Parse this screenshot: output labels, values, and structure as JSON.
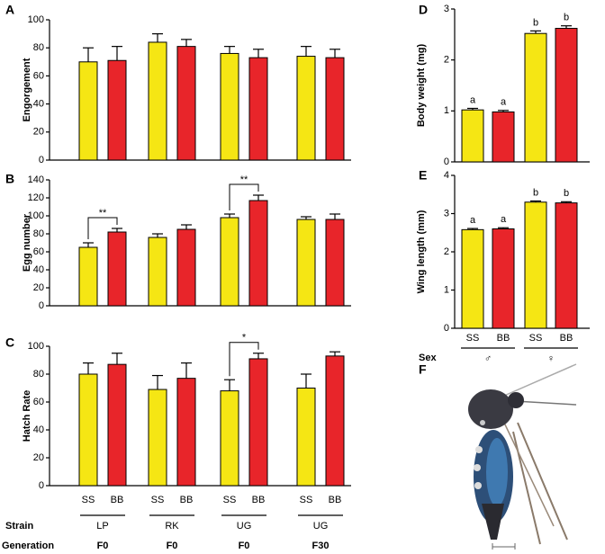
{
  "chart_data": [
    {
      "type": "bar",
      "panel": "A",
      "ylabel": "Engorgement",
      "ylim": [
        0,
        100
      ],
      "yticks": [
        0,
        20,
        40,
        60,
        80,
        100
      ],
      "categories": [
        "LP",
        "RK",
        "UG",
        "UG"
      ],
      "series": [
        {
          "name": "SS",
          "color": "#f5e614",
          "values": [
            70,
            84,
            76,
            74
          ],
          "errors": [
            10,
            6,
            5,
            7
          ]
        },
        {
          "name": "BB",
          "color": "#e8252a",
          "values": [
            71,
            81,
            73,
            73
          ],
          "errors": [
            10,
            5,
            6,
            6
          ]
        }
      ]
    },
    {
      "type": "bar",
      "panel": "B",
      "ylabel": "Egg number",
      "ylim": [
        0,
        140
      ],
      "yticks": [
        0,
        20,
        40,
        60,
        80,
        100,
        120,
        140
      ],
      "categories": [
        "LP",
        "RK",
        "UG",
        "UG"
      ],
      "significance": [
        "**",
        null,
        "**",
        null
      ],
      "series": [
        {
          "name": "SS",
          "color": "#f5e614",
          "values": [
            65,
            76,
            98,
            96
          ],
          "errors": [
            5,
            4,
            4,
            3
          ]
        },
        {
          "name": "BB",
          "color": "#e8252a",
          "values": [
            82,
            85,
            117,
            96
          ],
          "errors": [
            4,
            5,
            6,
            6
          ]
        }
      ]
    },
    {
      "type": "bar",
      "panel": "C",
      "ylabel": "Hatch Rate",
      "ylim": [
        0,
        100
      ],
      "yticks": [
        0,
        20,
        40,
        60,
        80,
        100
      ],
      "xlabel": "Strain",
      "x2label": "Generation",
      "categories": [
        "LP",
        "RK",
        "UG",
        "UG"
      ],
      "categories2": [
        "F0",
        "F0",
        "F0",
        "F30"
      ],
      "significance": [
        null,
        null,
        "*",
        null
      ],
      "series": [
        {
          "name": "SS",
          "color": "#f5e614",
          "values": [
            80,
            69,
            68,
            70
          ],
          "errors": [
            8,
            10,
            8,
            10
          ]
        },
        {
          "name": "BB",
          "color": "#e8252a",
          "values": [
            87,
            77,
            91,
            93
          ],
          "errors": [
            8,
            11,
            4,
            3
          ]
        }
      ]
    },
    {
      "type": "bar",
      "panel": "D",
      "ylabel": "Body weight (mg)",
      "ylim": [
        0,
        3
      ],
      "yticks": [
        0,
        1,
        2,
        3
      ],
      "categories": [
        "♂",
        "♀"
      ],
      "series": [
        {
          "name": "SS",
          "color": "#f5e614",
          "values": [
            1.02,
            2.52
          ],
          "errors": [
            0.03,
            0.05
          ],
          "letters": [
            "a",
            "b"
          ]
        },
        {
          "name": "BB",
          "color": "#e8252a",
          "values": [
            0.98,
            2.62
          ],
          "errors": [
            0.03,
            0.05
          ],
          "letters": [
            "a",
            "b"
          ]
        }
      ]
    },
    {
      "type": "bar",
      "panel": "E",
      "ylabel": "Wing length (mm)",
      "ylim": [
        0,
        4
      ],
      "yticks": [
        0,
        1,
        2,
        3,
        4
      ],
      "xlabel": "Sex",
      "categories": [
        "♂",
        "♀"
      ],
      "series": [
        {
          "name": "SS",
          "color": "#f5e614",
          "values": [
            2.58,
            3.3
          ],
          "errors": [
            0.03,
            0.03
          ],
          "letters": [
            "a",
            "b"
          ]
        },
        {
          "name": "BB",
          "color": "#e8252a",
          "values": [
            2.6,
            3.28
          ],
          "errors": [
            0.03,
            0.03
          ],
          "letters": [
            "a",
            "b"
          ]
        }
      ]
    }
  ],
  "panel_f": "F"
}
